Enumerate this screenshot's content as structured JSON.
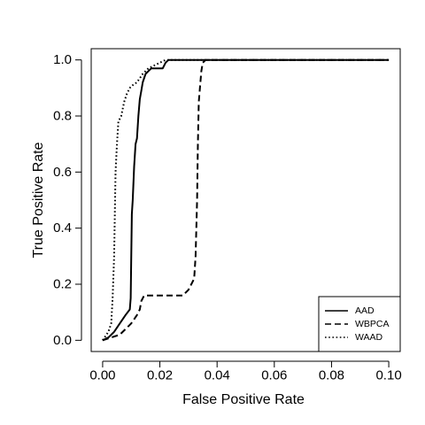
{
  "chart_data": {
    "type": "line",
    "title": "",
    "xlabel": "False Positive Rate",
    "ylabel": "True Positive Rate",
    "xlim": [
      -0.004,
      0.104
    ],
    "ylim": [
      -0.04,
      1.04
    ],
    "x_ticks": [
      0.0,
      0.02,
      0.04,
      0.06,
      0.08,
      0.1
    ],
    "x_tick_labels": [
      "0.00",
      "0.02",
      "0.04",
      "0.06",
      "0.08",
      "0.10"
    ],
    "y_ticks": [
      0.0,
      0.2,
      0.4,
      0.6,
      0.8,
      1.0
    ],
    "y_tick_labels": [
      "0.0",
      "0.2",
      "0.4",
      "0.6",
      "0.8",
      "1.0"
    ],
    "grid": false,
    "legend_position": "bottom-right",
    "colors": {
      "line": "#000000",
      "background": "#ffffff"
    },
    "series": [
      {
        "name": "AAD",
        "linestyle": "solid",
        "x": [
          0.0,
          0.002,
          0.004,
          0.006,
          0.008,
          0.0095,
          0.0098,
          0.0102,
          0.0105,
          0.011,
          0.0115,
          0.012,
          0.0125,
          0.013,
          0.0135,
          0.014,
          0.015,
          0.016,
          0.017,
          0.018,
          0.0195,
          0.021,
          0.022,
          0.023,
          0.1
        ],
        "y": [
          0.0,
          0.01,
          0.03,
          0.06,
          0.09,
          0.11,
          0.15,
          0.45,
          0.5,
          0.62,
          0.7,
          0.72,
          0.8,
          0.86,
          0.89,
          0.92,
          0.95,
          0.96,
          0.97,
          0.97,
          0.97,
          0.97,
          0.99,
          1.0,
          1.0
        ]
      },
      {
        "name": "WBPCA",
        "linestyle": "dashed",
        "x": [
          0.0,
          0.003,
          0.006,
          0.008,
          0.01,
          0.012,
          0.013,
          0.0135,
          0.0145,
          0.02,
          0.025,
          0.028,
          0.03,
          0.031,
          0.032,
          0.0325,
          0.033,
          0.0333,
          0.0336,
          0.034,
          0.0345,
          0.035,
          0.036,
          0.1
        ],
        "y": [
          0.0,
          0.01,
          0.02,
          0.04,
          0.06,
          0.09,
          0.11,
          0.14,
          0.16,
          0.16,
          0.16,
          0.16,
          0.18,
          0.2,
          0.22,
          0.3,
          0.5,
          0.7,
          0.85,
          0.9,
          0.96,
          0.99,
          1.0,
          1.0
        ]
      },
      {
        "name": "WAAD",
        "linestyle": "dotted",
        "x": [
          0.0,
          0.002,
          0.003,
          0.0035,
          0.004,
          0.0045,
          0.005,
          0.0055,
          0.0065,
          0.0075,
          0.0085,
          0.0095,
          0.0105,
          0.012,
          0.014,
          0.016,
          0.018,
          0.02,
          0.022,
          0.1
        ],
        "y": [
          0.0,
          0.03,
          0.06,
          0.15,
          0.3,
          0.6,
          0.7,
          0.78,
          0.8,
          0.85,
          0.88,
          0.9,
          0.91,
          0.92,
          0.95,
          0.97,
          0.98,
          0.99,
          1.0,
          1.0
        ]
      }
    ]
  }
}
